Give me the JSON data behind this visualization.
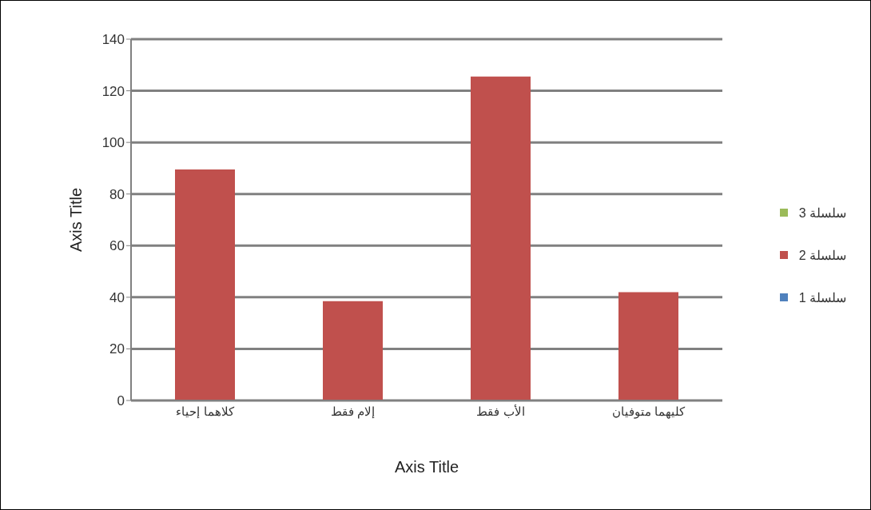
{
  "chart_data": {
    "type": "bar",
    "xlabel": "Axis Title",
    "ylabel": "Axis Title",
    "categories": [
      "كلاهما إحياء",
      "إلام فقط",
      "الأب فقط",
      "كليهما متوفيان"
    ],
    "series": [
      {
        "name": "سلسلة 1",
        "color": "#4f81bd",
        "values": [
          null,
          null,
          null,
          null
        ]
      },
      {
        "name": "سلسلة 2",
        "color": "#c0504d",
        "values": [
          89.5,
          38.5,
          125.5,
          42
        ]
      },
      {
        "name": "سلسلة 3",
        "color": "#9bbb59",
        "values": [
          null,
          null,
          null,
          null
        ]
      }
    ],
    "ylim": [
      0,
      140
    ],
    "yticks": [
      0,
      20,
      40,
      60,
      80,
      100,
      120,
      140
    ],
    "grid": "y",
    "legend": "right"
  }
}
